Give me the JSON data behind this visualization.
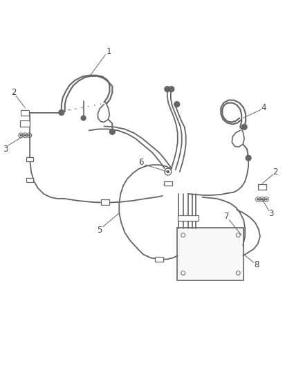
{
  "background_color": "#ffffff",
  "line_color": "#646464",
  "line_width": 1.3,
  "label_color": "#444444",
  "label_fontsize": 8.5,
  "figsize": [
    4.38,
    5.33
  ],
  "dpi": 100
}
